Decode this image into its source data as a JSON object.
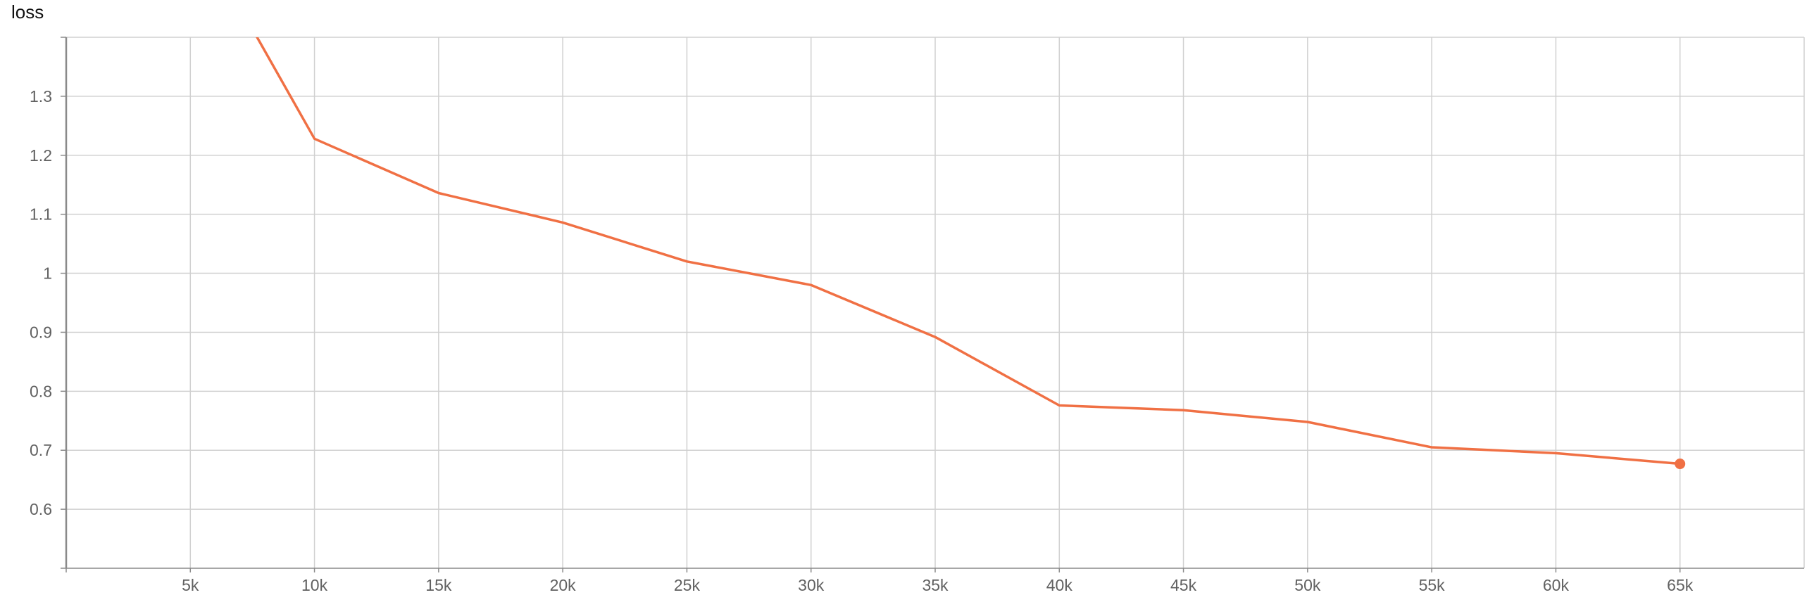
{
  "chart_data": {
    "type": "line",
    "title": "loss",
    "xlabel": "",
    "ylabel": "",
    "xlim": [
      0,
      70000
    ],
    "ylim": [
      0.5,
      1.4
    ],
    "x_ticks": [
      5000,
      10000,
      15000,
      20000,
      25000,
      30000,
      35000,
      40000,
      45000,
      50000,
      55000,
      60000,
      65000
    ],
    "x_tick_labels": [
      "5k",
      "10k",
      "15k",
      "20k",
      "25k",
      "30k",
      "35k",
      "40k",
      "45k",
      "50k",
      "55k",
      "60k",
      "65k"
    ],
    "y_ticks": [
      0.6,
      0.7,
      0.8,
      0.9,
      1.0,
      1.1,
      1.2,
      1.3
    ],
    "y_tick_labels": [
      "0.6",
      "0.7",
      "0.8",
      "0.9",
      "1",
      "1.1",
      "1.2",
      "1.3"
    ],
    "grid": true,
    "colors": {
      "series": "#f07044",
      "grid": "#d0d0d0",
      "axis": "#8a8a8a"
    },
    "series": [
      {
        "x": [
          5000,
          10000,
          15000,
          20000,
          25000,
          30000,
          35000,
          40000,
          45000,
          50000,
          55000,
          60000,
          65000
        ],
        "y": [
          1.6,
          1.228,
          1.136,
          1.086,
          1.02,
          0.98,
          0.892,
          0.776,
          0.768,
          0.748,
          0.705,
          0.695,
          0.677
        ]
      }
    ]
  }
}
